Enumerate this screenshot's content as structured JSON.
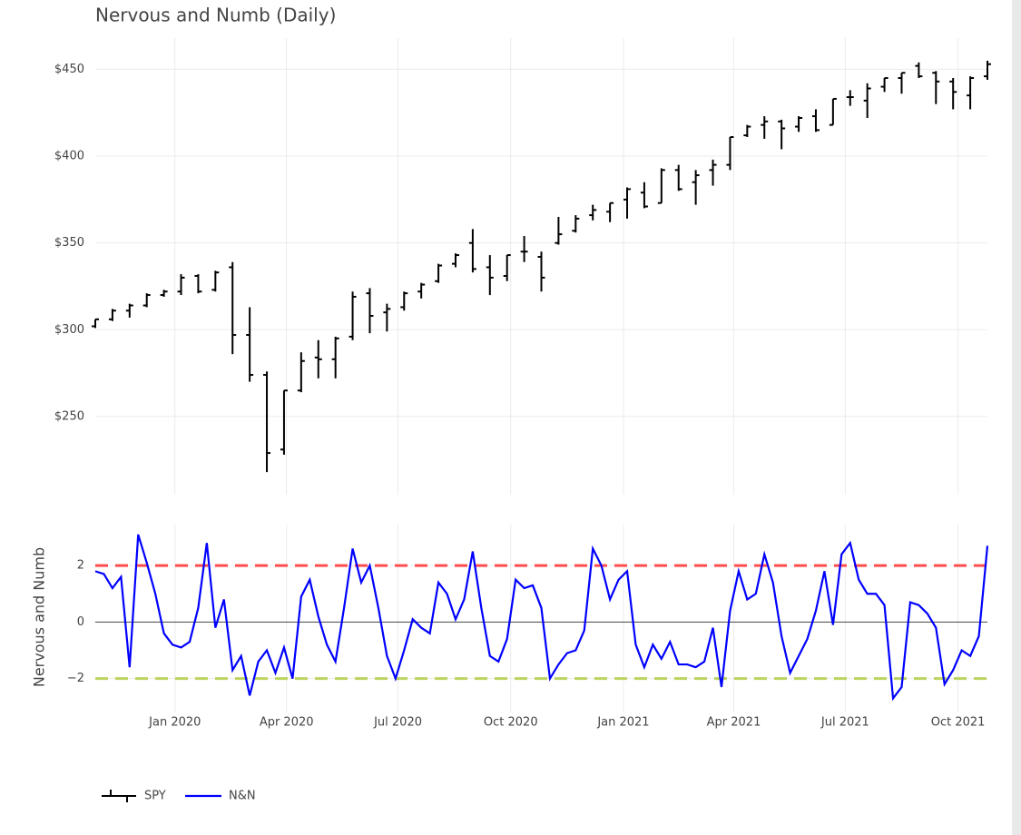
{
  "chart_data": [
    {
      "type": "ohlc",
      "title": "Nervous and Numb (Daily)",
      "categories": [
        null,
        null,
        null,
        null,
        null,
        null,
        null,
        null,
        null,
        null,
        null,
        null,
        null,
        null,
        null,
        null,
        null,
        null,
        null,
        null,
        null,
        null,
        null,
        null,
        null,
        null,
        null,
        null,
        null,
        null,
        null,
        null,
        null,
        null,
        null,
        null,
        null,
        null,
        null,
        null,
        null,
        null,
        null,
        null,
        null,
        null,
        null,
        null,
        null,
        null,
        null,
        null,
        null
      ],
      "series": [
        {
          "name": "SPY",
          "color": "#000000",
          "open": [
            302,
            306,
            311,
            314,
            320,
            322,
            331,
            323,
            336,
            297,
            274,
            231,
            265,
            284,
            283,
            296,
            321,
            310,
            313,
            322,
            328,
            338,
            350,
            336,
            331,
            345,
            342,
            350,
            357,
            366,
            368,
            375,
            379,
            373,
            392,
            385,
            392,
            395,
            412,
            418,
            420,
            417,
            423,
            418,
            434,
            432,
            440,
            445,
            452,
            448,
            443,
            435,
            446
          ],
          "high": [
            306,
            312,
            315,
            321,
            323,
            332,
            332,
            334,
            339,
            313,
            276,
            265,
            287,
            294,
            296,
            322,
            324,
            315,
            322,
            327,
            338,
            344,
            358,
            343,
            343,
            354,
            345,
            365,
            366,
            372,
            373,
            382,
            385,
            393,
            395,
            392,
            398,
            411,
            418,
            423,
            421,
            423,
            427,
            433,
            438,
            442,
            445,
            448,
            454,
            449,
            445,
            446,
            455
          ],
          "low": [
            301,
            305,
            307,
            313,
            319,
            320,
            321,
            322,
            286,
            270,
            218,
            228,
            264,
            272,
            272,
            294,
            298,
            299,
            311,
            318,
            327,
            336,
            333,
            320,
            328,
            339,
            322,
            349,
            356,
            363,
            362,
            364,
            370,
            373,
            380,
            372,
            383,
            392,
            411,
            410,
            404,
            414,
            414,
            418,
            429,
            422,
            437,
            436,
            445,
            430,
            427,
            427,
            444
          ],
          "close": [
            306,
            311,
            314,
            320,
            322,
            330,
            322,
            333,
            297,
            274,
            229,
            265,
            282,
            283,
            295,
            319,
            308,
            312,
            321,
            326,
            337,
            343,
            335,
            330,
            343,
            345,
            330,
            355,
            364,
            369,
            373,
            381,
            371,
            392,
            381,
            389,
            395,
            411,
            417,
            420,
            416,
            422,
            415,
            433,
            434,
            439,
            445,
            448,
            446,
            443,
            437,
            445,
            453
          ]
        }
      ],
      "ylim": [
        205,
        468
      ],
      "yticks": [
        {
          "value": 250,
          "label": "$250"
        },
        {
          "value": 300,
          "label": "$300"
        },
        {
          "value": 350,
          "label": "$350"
        },
        {
          "value": 400,
          "label": "$400"
        },
        {
          "value": 450,
          "label": "$450"
        }
      ],
      "xticks": [
        4.64,
        11.14,
        17.64,
        24.21,
        30.79,
        37.21,
        43.71,
        50.29
      ],
      "grid": true
    },
    {
      "type": "line",
      "y_label": "Nervous and Numb",
      "categories": [
        null,
        null,
        null,
        null,
        null,
        null,
        null,
        null,
        null,
        null,
        null,
        null,
        null,
        null,
        null,
        null,
        null,
        null,
        null,
        null,
        null,
        null,
        null,
        null,
        null,
        null,
        null,
        null,
        null,
        null,
        null,
        null,
        null,
        null,
        null,
        null,
        null,
        null,
        null,
        null,
        null,
        null,
        null,
        null,
        null,
        null,
        null,
        null,
        null,
        null,
        null,
        null,
        null,
        null,
        null,
        null,
        null,
        null,
        null,
        null,
        null,
        null,
        null,
        null,
        null,
        null,
        null,
        null,
        null,
        null,
        null,
        null,
        null,
        null,
        null,
        null,
        null,
        null,
        null,
        null,
        null,
        null,
        null,
        null,
        null,
        null,
        null,
        null,
        null,
        null,
        null,
        null,
        null,
        null,
        null,
        null,
        null,
        null,
        null,
        null,
        null,
        null,
        null,
        null,
        null
      ],
      "series": [
        {
          "name": "N&N",
          "color": "#0000ff",
          "values": [
            1.8,
            1.7,
            1.2,
            1.6,
            -1.6,
            3.1,
            2.1,
            1.0,
            -0.4,
            -0.8,
            -0.9,
            -0.7,
            0.5,
            2.8,
            -0.2,
            0.8,
            -1.7,
            -1.2,
            -2.6,
            -1.4,
            -1.0,
            -1.8,
            -0.9,
            -2.0,
            0.9,
            1.5,
            0.2,
            -0.8,
            -1.4,
            0.5,
            2.6,
            1.4,
            2.0,
            0.5,
            -1.2,
            -2.0,
            -1.0,
            0.1,
            -0.2,
            -0.4,
            1.4,
            1.0,
            0.1,
            0.8,
            2.5,
            0.5,
            -1.2,
            -1.4,
            -0.6,
            1.5,
            1.2,
            1.3,
            0.5,
            -2.0,
            -1.5,
            -1.1,
            -1.0,
            -0.3,
            2.6,
            2.0,
            0.8,
            1.5,
            1.8,
            -0.8,
            -1.6,
            -0.8,
            -1.3,
            -0.7,
            -1.5,
            -1.5,
            -1.6,
            -1.4,
            -0.2,
            -2.3,
            0.4,
            1.8,
            0.8,
            1.0,
            2.4,
            1.4,
            -0.5,
            -1.8,
            -1.2,
            -0.6,
            0.4,
            1.8,
            -0.1,
            2.4,
            2.8,
            1.5,
            1.0,
            1.0,
            0.6,
            -2.7,
            -2.3,
            0.7,
            0.6,
            0.3,
            -0.2,
            -2.2,
            -1.7,
            -1.0,
            -1.2,
            -0.5,
            2.7
          ]
        }
      ],
      "hlines": [
        {
          "value": 2,
          "color": "#ff4d4d"
        },
        {
          "value": -2,
          "color": "#bcd35f"
        }
      ],
      "ylim": [
        -3.2,
        3.45
      ],
      "yticks": [
        {
          "value": -2,
          "label": "−2"
        },
        0,
        2
      ],
      "xticks": [
        {
          "value": 9.29,
          "label": "Jan 2020"
        },
        {
          "value": 22.29,
          "label": "Apr 2020"
        },
        {
          "value": 35.29,
          "label": "Jul 2020"
        },
        {
          "value": 48.43,
          "label": "Oct 2020"
        },
        {
          "value": 61.57,
          "label": "Jan 2021"
        },
        {
          "value": 74.43,
          "label": "Apr 2021"
        },
        {
          "value": 87.43,
          "label": "Jul 2021"
        },
        {
          "value": 100.57,
          "label": "Oct 2021"
        }
      ],
      "grid": true,
      "legend": "bottom-left"
    }
  ]
}
